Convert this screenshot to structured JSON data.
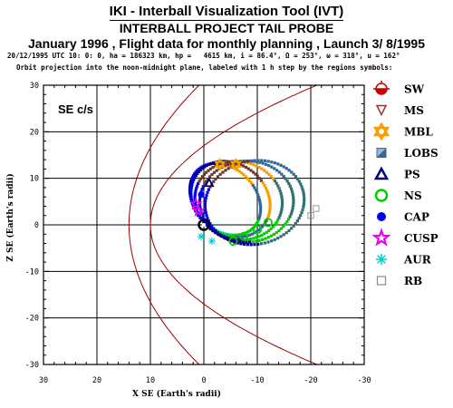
{
  "header": {
    "title": "IKI - Interball Visualization Tool (IVT)",
    "subtitle": "INTERBALL PROJECT TAIL PROBE",
    "mission_line": "January 1996 ,  Flight data for monthly planning ,   Launch  3/ 8/1995",
    "orbit_params": "20/12/1995 UTC 10: 0: 0, ha = 186323 km, hp =   4615 km, i = 86.4°, Ω = 253°, ω = 318°, u = 162°",
    "projection_note": "Orbit projection into the noon-midnight plane, labeled with 1 h step by the regions symbols:"
  },
  "chart_data": {
    "type": "scatter",
    "frame_label": "SE c/s",
    "xlabel": "X SE (Earth's radii)",
    "ylabel": "Z SE (Earth's radii)",
    "xlim": [
      30,
      -30
    ],
    "ylim": [
      -30,
      30
    ],
    "x_ticks": [
      "30",
      "20",
      "10",
      "0",
      "-10",
      "-20",
      "-30"
    ],
    "y_ticks": [
      "30",
      "20",
      "10",
      "0",
      "-10",
      "-20",
      "-30"
    ],
    "grid": true,
    "boundaries": [
      {
        "name": "bow shock",
        "color": "#990000",
        "nose_x": 14,
        "flank_z": 31
      },
      {
        "name": "magnetopause",
        "color": "#990000",
        "nose_x": 10,
        "flank_z": 17
      }
    ],
    "legend_position": "right",
    "legend": [
      {
        "label": "SW",
        "symbol": "sw",
        "color": "#cc0000"
      },
      {
        "label": "MS",
        "symbol": "tri-down",
        "color": "#993333"
      },
      {
        "label": "MBL",
        "symbol": "star6",
        "color": "#f5a000"
      },
      {
        "label": "LOBS",
        "symbol": "square-split",
        "color": "#336699"
      },
      {
        "label": "PS",
        "symbol": "tri-up",
        "color": "#000080"
      },
      {
        "label": "NS",
        "symbol": "circle",
        "color": "#00cc00"
      },
      {
        "label": "CAP",
        "symbol": "dot",
        "color": "#0000ee"
      },
      {
        "label": "CUSP",
        "symbol": "star5",
        "color": "#ee00ee"
      },
      {
        "label": "AUR",
        "symbol": "asterisk",
        "color": "#00cccc"
      },
      {
        "label": "RB",
        "symbol": "square",
        "color": "#888888"
      }
    ],
    "orbit_loops": [
      {
        "cx": -4.0,
        "cz": 5.5,
        "a": 6.0,
        "b": 8.2,
        "tilt": -30,
        "colors": [
          "#000080",
          "#0000ee",
          "#f5a000",
          "#336699",
          "#00cc00",
          "#00cccc"
        ]
      },
      {
        "cx": -5.0,
        "cz": 5.5,
        "a": 7.0,
        "b": 8.5,
        "tilt": -30,
        "colors": [
          "#0000ee",
          "#000080",
          "#6b3a2a",
          "#f5a000",
          "#336699",
          "#00cc00"
        ]
      },
      {
        "cx": -6.5,
        "cz": 5.2,
        "a": 8.0,
        "b": 8.6,
        "tilt": -32,
        "colors": [
          "#0000ee",
          "#6b3a2a",
          "#f5a000",
          "#2f6f6f",
          "#00cc00",
          "#000080"
        ]
      },
      {
        "cx": -8.0,
        "cz": 5.0,
        "a": 8.8,
        "b": 8.7,
        "tilt": -34,
        "colors": [
          "#0000ee",
          "#6b3a2a",
          "#336699",
          "#2f6f6f",
          "#00cc00",
          "#000080"
        ]
      },
      {
        "cx": -9.5,
        "cz": 4.8,
        "a": 9.5,
        "b": 8.8,
        "tilt": -36,
        "colors": [
          "#0000ee",
          "#6b3a2a",
          "#336699",
          "#2f6f6f",
          "#2f6f6f",
          "#000080"
        ]
      }
    ],
    "earth": {
      "x": 0,
      "z": 0,
      "r": 1.3
    }
  }
}
